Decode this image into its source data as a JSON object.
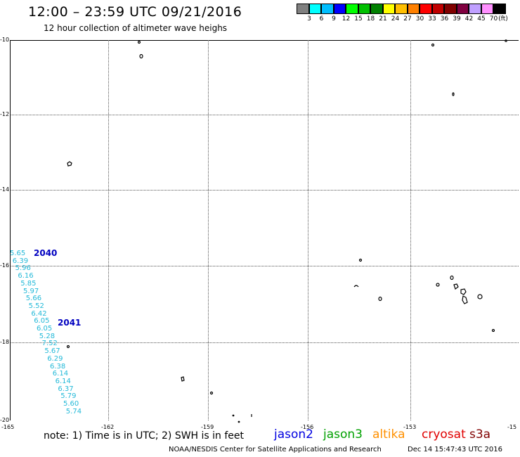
{
  "header": {
    "title": "12:00 – 23:59 UTC 09/21/2016",
    "subtitle": "12 hour collection of altimeter wave heighs"
  },
  "legend": {
    "colors": [
      "#808080",
      "#00ffff",
      "#00bfff",
      "#0000ff",
      "#00ff00",
      "#00c000",
      "#008000",
      "#ffff00",
      "#ffbf00",
      "#ff8000",
      "#ff0000",
      "#c00000",
      "#800000",
      "#800040",
      "#c0a0ff",
      "#ff90ff",
      "#000000"
    ],
    "labels": [
      "3",
      "6",
      "9",
      "12",
      "15",
      "18",
      "21",
      "24",
      "27",
      "30",
      "33",
      "36",
      "39",
      "42",
      "45",
      "70"
    ],
    "unit": "(ft)"
  },
  "axes": {
    "y_ticks": [
      "-10",
      "-12",
      "-14",
      "-16",
      "-18",
      "-20"
    ],
    "x_ticks": [
      "-165",
      "-162",
      "-159",
      "-156",
      "-153",
      "-15"
    ]
  },
  "passes": [
    {
      "id": "2040"
    },
    {
      "id": "2041"
    }
  ],
  "observations": [
    "5.65",
    "6.39",
    "5.96",
    "6.16",
    "5.85",
    "5.97",
    "5.66",
    "5.52",
    "6.42",
    "6.05",
    "6.05",
    "5.28",
    "7.52",
    "5.67",
    "6.29",
    "6.38",
    "6.14",
    "6.14",
    "6.37",
    "5.79",
    "5.60",
    "5.74"
  ],
  "footer": {
    "note": "note:  1) Time is in UTC;  2) SWH is in feet",
    "satellites": [
      {
        "name": "jason2",
        "color": "#0000e0"
      },
      {
        "name": "jason3",
        "color": "#00a000"
      },
      {
        "name": "altika",
        "color": "#ff9000"
      },
      {
        "name": "cryosat",
        "color": "#e00000"
      },
      {
        "name": "s3a",
        "color": "#800000"
      }
    ],
    "credit": "NOAA/NESDIS Center for Satellite Applications and Research",
    "timestamp": "Dec 14 15:47:43 UTC 2016"
  }
}
